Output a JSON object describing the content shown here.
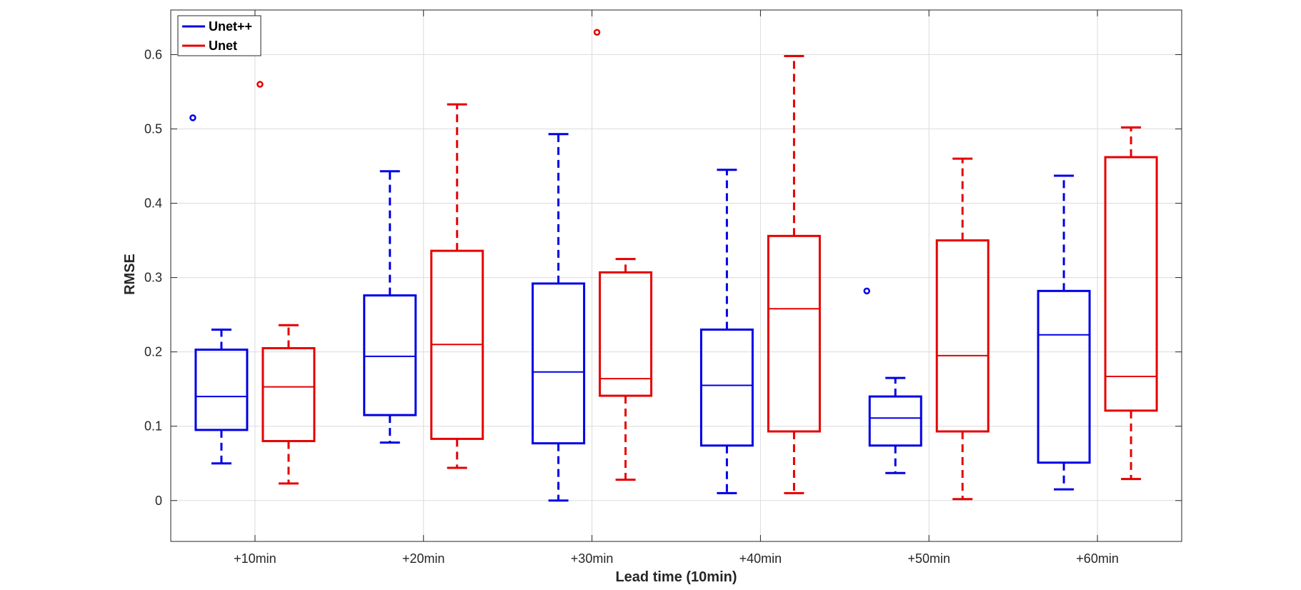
{
  "chart_data": {
    "type": "box",
    "title": "",
    "xlabel": "Lead time (10min)",
    "ylabel": "RMSE",
    "ylim": [
      -0.055,
      0.66
    ],
    "yticks": [
      0,
      0.1,
      0.2,
      0.3,
      0.4,
      0.5,
      0.6
    ],
    "ytick_labels": [
      "0",
      "0.1",
      "0.2",
      "0.3",
      "0.4",
      "0.5",
      "0.6"
    ],
    "categories": [
      "+10min",
      "+20min",
      "+30min",
      "+40min",
      "+50min",
      "+60min"
    ],
    "grid": true,
    "legend_position": "top-left",
    "series": [
      {
        "name": "Unet++",
        "color": "#0000e6",
        "boxes": [
          {
            "whisker_low": 0.05,
            "q1": 0.095,
            "median": 0.14,
            "q3": 0.203,
            "whisker_high": 0.23,
            "outliers": [
              0.515
            ]
          },
          {
            "whisker_low": 0.078,
            "q1": 0.115,
            "median": 0.194,
            "q3": 0.276,
            "whisker_high": 0.443,
            "outliers": []
          },
          {
            "whisker_low": 0.0,
            "q1": 0.077,
            "median": 0.173,
            "q3": 0.292,
            "whisker_high": 0.493,
            "outliers": []
          },
          {
            "whisker_low": 0.01,
            "q1": 0.074,
            "median": 0.155,
            "q3": 0.23,
            "whisker_high": 0.445,
            "outliers": []
          },
          {
            "whisker_low": 0.037,
            "q1": 0.074,
            "median": 0.111,
            "q3": 0.14,
            "whisker_high": 0.165,
            "outliers": [
              0.282
            ]
          },
          {
            "whisker_low": 0.015,
            "q1": 0.051,
            "median": 0.223,
            "q3": 0.282,
            "whisker_high": 0.437,
            "outliers": []
          }
        ]
      },
      {
        "name": "Unet",
        "color": "#e60000",
        "boxes": [
          {
            "whisker_low": 0.023,
            "q1": 0.08,
            "median": 0.153,
            "q3": 0.205,
            "whisker_high": 0.236,
            "outliers": [
              0.56
            ]
          },
          {
            "whisker_low": 0.044,
            "q1": 0.083,
            "median": 0.21,
            "q3": 0.336,
            "whisker_high": 0.533,
            "outliers": []
          },
          {
            "whisker_low": 0.028,
            "q1": 0.141,
            "median": 0.164,
            "q3": 0.307,
            "whisker_high": 0.325,
            "outliers": [
              0.63
            ]
          },
          {
            "whisker_low": 0.01,
            "q1": 0.093,
            "median": 0.258,
            "q3": 0.356,
            "whisker_high": 0.598,
            "outliers": []
          },
          {
            "whisker_low": 0.002,
            "q1": 0.093,
            "median": 0.195,
            "q3": 0.35,
            "whisker_high": 0.46,
            "outliers": []
          },
          {
            "whisker_low": 0.029,
            "q1": 0.121,
            "median": 0.167,
            "q3": 0.462,
            "whisker_high": 0.502,
            "outliers": []
          }
        ]
      }
    ]
  }
}
